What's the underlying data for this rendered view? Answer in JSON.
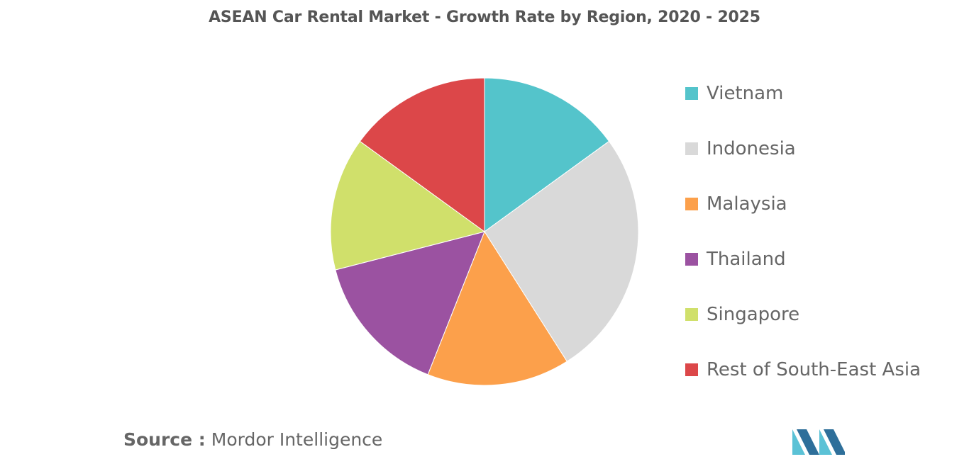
{
  "chart_data": {
    "type": "pie",
    "title": "ASEAN Car Rental Market - Growth Rate by Region, 2020 - 2025",
    "categories": [
      "Vietnam",
      "Indonesia",
      "Malaysia",
      "Thailand",
      "Singapore",
      "Rest of South-East Asia"
    ],
    "values": [
      15,
      26,
      15,
      15,
      14,
      15
    ],
    "colors": [
      "#54C4CB",
      "#D9D9D9",
      "#FCA04B",
      "#9B52A1",
      "#D0E06B",
      "#DC4749"
    ],
    "legend_position": "right"
  },
  "source": {
    "label": "Source :",
    "text": "Mordor Intelligence"
  },
  "logo": {
    "icon": "mordor-intelligence-logo-icon",
    "colors": [
      "#2E6F9A",
      "#5BC2D6"
    ]
  }
}
